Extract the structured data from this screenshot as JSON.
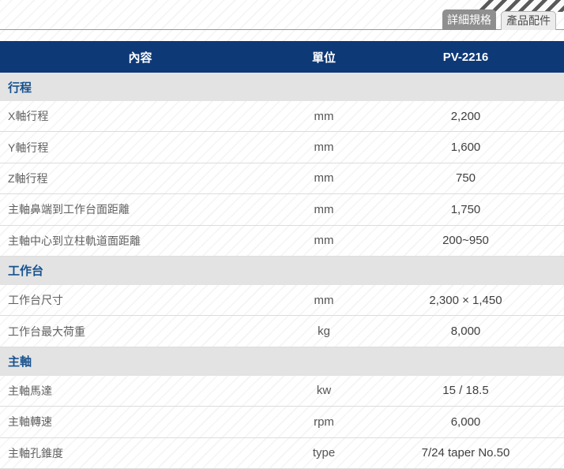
{
  "tabs": [
    {
      "label": "詳細規格",
      "active": true
    },
    {
      "label": "產品配件",
      "active": false
    }
  ],
  "table": {
    "headers": [
      "內容",
      "單位",
      "PV-2216"
    ],
    "sections": [
      {
        "title": "行程",
        "rows": [
          {
            "label": "X軸行程",
            "unit": "mm",
            "value": "2,200"
          },
          {
            "label": "Y軸行程",
            "unit": "mm",
            "value": "1,600"
          },
          {
            "label": "Z軸行程",
            "unit": "mm",
            "value": "750"
          },
          {
            "label": "主軸鼻端到工作台面距離",
            "unit": "mm",
            "value": "1,750"
          },
          {
            "label": "主軸中心到立柱軌道面距離",
            "unit": "mm",
            "value": "200~950"
          }
        ]
      },
      {
        "title": "工作台",
        "rows": [
          {
            "label": "工作台尺寸",
            "unit": "mm",
            "value": "2,300 × 1,450"
          },
          {
            "label": "工作台最大荷重",
            "unit": "kg",
            "value": "8,000"
          }
        ]
      },
      {
        "title": "主軸",
        "rows": [
          {
            "label": "主軸馬達",
            "unit": "kw",
            "value": "15 / 18.5"
          },
          {
            "label": "主軸轉速",
            "unit": "rpm",
            "value": "6,000"
          },
          {
            "label": "主軸孔錐度",
            "unit": "type",
            "value": "7/24 taper No.50"
          }
        ]
      }
    ]
  },
  "colors": {
    "header_bg": "#0e3977",
    "section_bg": "#e3e3e3",
    "section_text": "#17528f",
    "tab_active_bg": "#8f8f8f",
    "tab_inactive_bg": "#ececec"
  }
}
